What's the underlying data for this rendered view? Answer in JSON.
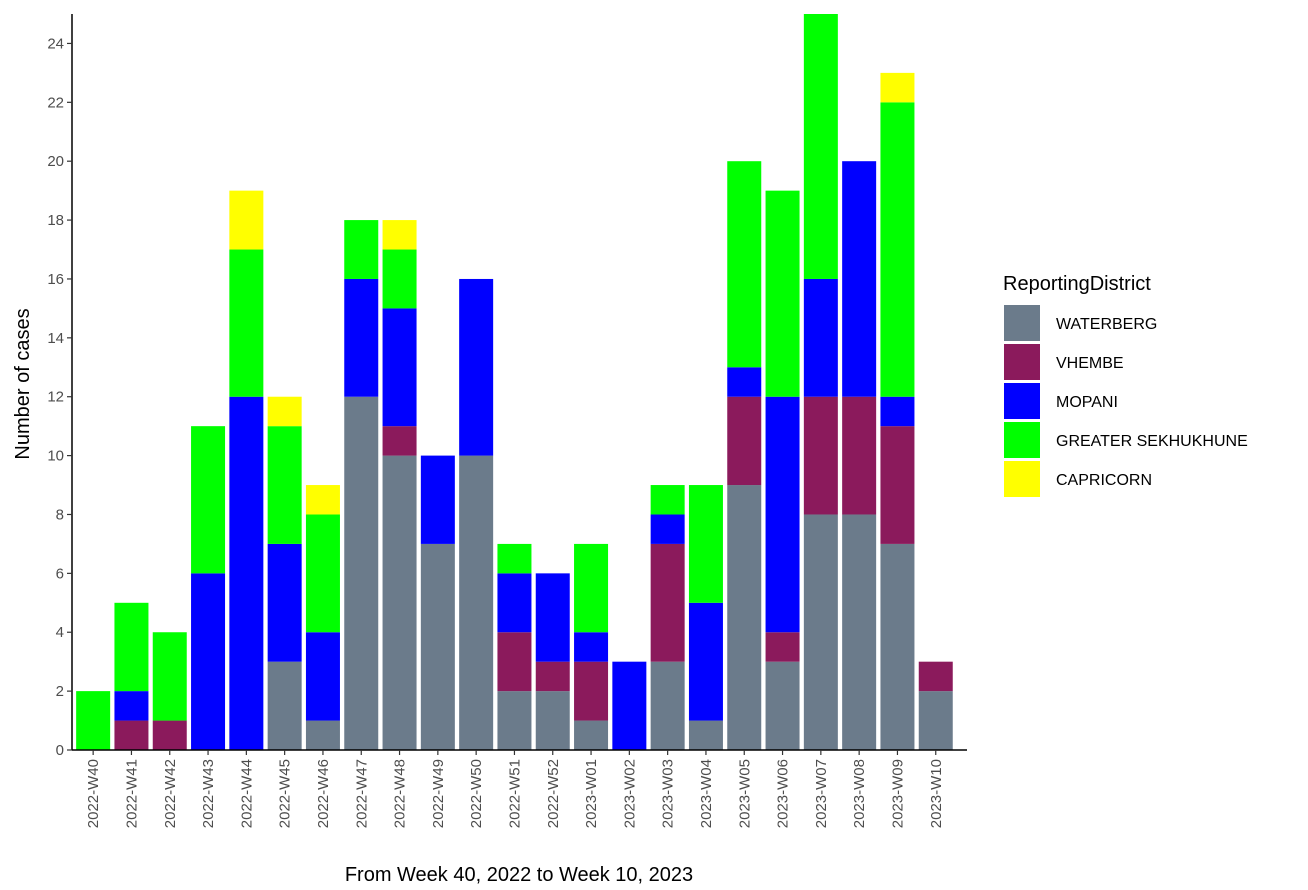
{
  "chart_data": {
    "type": "bar",
    "stacked": true,
    "xlabel": "From Week 40, 2022 to Week 10, 2023",
    "ylabel": "Number of cases",
    "ylim": [
      0,
      25
    ],
    "yticks": [
      0,
      2,
      4,
      6,
      8,
      10,
      12,
      14,
      16,
      18,
      20,
      22,
      24
    ],
    "grid": false,
    "legend": {
      "title": "ReportingDistrict",
      "placement": "right"
    },
    "categories": [
      "2022-W40",
      "2022-W41",
      "2022-W42",
      "2022-W43",
      "2022-W44",
      "2022-W45",
      "2022-W46",
      "2022-W47",
      "2022-W48",
      "2022-W49",
      "2022-W50",
      "2022-W51",
      "2022-W52",
      "2023-W01",
      "2023-W02",
      "2023-W03",
      "2023-W04",
      "2023-W05",
      "2023-W06",
      "2023-W07",
      "2023-W08",
      "2023-W09",
      "2023-W10"
    ],
    "series": [
      {
        "name": "WATERBERG",
        "color": "#6b7b8b",
        "values": [
          0,
          0,
          0,
          0,
          0,
          3,
          1,
          12,
          10,
          7,
          10,
          2,
          2,
          1,
          0,
          3,
          1,
          9,
          3,
          8,
          8,
          7,
          2
        ]
      },
      {
        "name": "VHEMBE",
        "color": "#8b1a5c",
        "values": [
          0,
          1,
          1,
          0,
          0,
          0,
          0,
          0,
          1,
          0,
          0,
          2,
          1,
          2,
          0,
          4,
          0,
          3,
          1,
          4,
          4,
          4,
          1
        ]
      },
      {
        "name": "MOPANI",
        "color": "#0000ff",
        "values": [
          0,
          1,
          0,
          6,
          12,
          4,
          3,
          4,
          4,
          3,
          6,
          2,
          3,
          1,
          3,
          1,
          4,
          1,
          8,
          4,
          8,
          1,
          0
        ]
      },
      {
        "name": "GREATER SEKHUKHUNE",
        "color": "#00ff00",
        "values": [
          2,
          3,
          3,
          5,
          5,
          4,
          4,
          2,
          2,
          0,
          0,
          1,
          0,
          3,
          0,
          1,
          4,
          7,
          7,
          9,
          0,
          10,
          0
        ]
      },
      {
        "name": "CAPRICORN",
        "color": "#ffff00",
        "values": [
          0,
          0,
          0,
          0,
          2,
          1,
          1,
          0,
          1,
          0,
          0,
          0,
          0,
          0,
          0,
          0,
          0,
          0,
          0,
          0,
          0,
          1,
          0
        ]
      }
    ]
  }
}
